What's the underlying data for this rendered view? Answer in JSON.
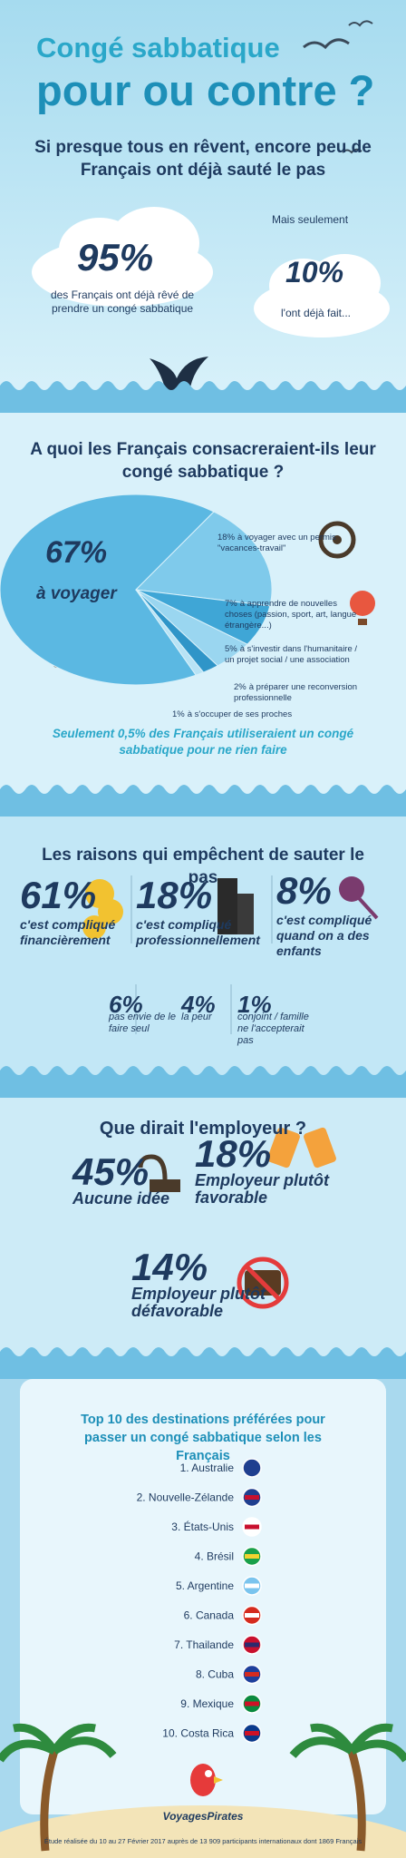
{
  "header": {
    "title_line1": "Congé sabbatique",
    "title_line2": "pour ou contre ?"
  },
  "section1": {
    "heading": "Si presque tous en rêvent, encore peu de Français ont déjà sauté le pas",
    "left": {
      "value": "95%",
      "text": "des Français ont déjà rêvé de prendre un congé sabbatique"
    },
    "right": {
      "intro": "Mais seulement",
      "value": "10%",
      "text": "l'ont déjà fait..."
    }
  },
  "chart_data": {
    "type": "pie",
    "title": "A quoi les Français consacreraient-ils leur congé sabbatique ?",
    "categories": [
      "à voyager",
      "à voyager avec un permis \"vacances-travail\"",
      "à apprendre de nouvelles choses (passion, sport, art, langue étrangère...)",
      "à s'investir dans l'humanitaire / un projet social / une association",
      "à préparer une reconversion professionnelle",
      "à s'occuper de ses proches"
    ],
    "values": [
      67,
      18,
      7,
      5,
      2,
      1
    ],
    "value_labels": [
      "67%",
      "18%",
      "7%",
      "5%",
      "2%",
      "1%"
    ],
    "colors": [
      "#5bb8e2",
      "#7fcaeb",
      "#3fa6d6",
      "#9ad6f0",
      "#2f95c8",
      "#b8e3f5"
    ],
    "note": "Seulement 0,5% des Français utiliseraient un congé sabbatique pour ne rien faire"
  },
  "section3": {
    "heading": "Les raisons qui empêchent de sauter le pas",
    "items": [
      {
        "value": "61%",
        "text": "c'est compliqué financièrement"
      },
      {
        "value": "18%",
        "text": "c'est compliqué professionnellement"
      },
      {
        "value": "8%",
        "text": "c'est compliqué quand on a des enfants"
      },
      {
        "value": "6%",
        "text": "pas envie de le faire seul"
      },
      {
        "value": "4%",
        "text": "la peur"
      },
      {
        "value": "1%",
        "text": "conjoint / famille ne l'accepterait pas"
      }
    ]
  },
  "section4": {
    "heading": "Que dirait l'employeur ?",
    "items": [
      {
        "value": "45%",
        "text": "Aucune idée"
      },
      {
        "value": "18%",
        "text": "Employeur plutôt favorable"
      },
      {
        "value": "14%",
        "text": "Employeur plutôt défavorable"
      }
    ]
  },
  "destinations": {
    "title": "Top 10 des destinations préférées pour passer un congé sabbatique selon les Français",
    "items": [
      "1. Australie",
      "2. Nouvelle-Zélande",
      "3. États-Unis",
      "4. Brésil",
      "5. Argentine",
      "6. Canada",
      "7. Thailande",
      "8. Cuba",
      "9. Mexique",
      "10. Costa Rica"
    ]
  },
  "footer": {
    "brand": "VoyagesPirates",
    "source": "Étude réalisée du 10 au 27 Février 2017 auprès de 13 909 participants internationaux dont 1869 Français"
  }
}
